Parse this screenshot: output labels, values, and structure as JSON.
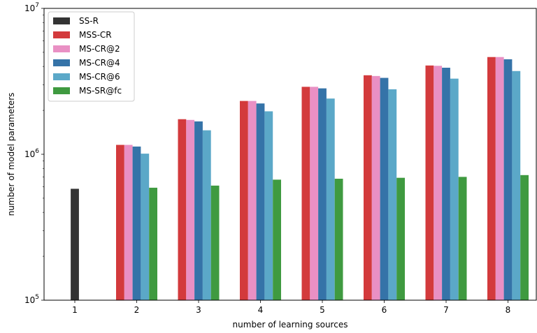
{
  "chart_data": {
    "type": "bar",
    "xlabel": "number of learning sources",
    "ylabel": "number of model parameters",
    "yscale": "log",
    "ylim": [
      100000,
      10000000
    ],
    "ytick_base": "10",
    "yticks": [
      {
        "value": 100000,
        "exp": "5"
      },
      {
        "value": 1000000,
        "exp": "6"
      },
      {
        "value": 10000000,
        "exp": "7"
      }
    ],
    "categories": [
      "1",
      "2",
      "3",
      "4",
      "5",
      "6",
      "7",
      "8"
    ],
    "legend_position": "top-left",
    "series": [
      {
        "name": "SS-R",
        "color": "#333333",
        "values": [
          580000,
          null,
          null,
          null,
          null,
          null,
          null,
          null
        ]
      },
      {
        "name": "MSS-CR",
        "color": "#d33a3c",
        "values": [
          null,
          1160000,
          1740000,
          2320000,
          2900000,
          3480000,
          4060000,
          4640000
        ]
      },
      {
        "name": "MS-CR@2",
        "color": "#e990c4",
        "values": [
          null,
          1160000,
          1720000,
          2320000,
          2900000,
          3440000,
          4040000,
          4640000
        ]
      },
      {
        "name": "MS-CR@4",
        "color": "#3573a8",
        "values": [
          null,
          1130000,
          1680000,
          2230000,
          2830000,
          3340000,
          3920000,
          4480000
        ]
      },
      {
        "name": "MS-CR@6",
        "color": "#5ba8c8",
        "values": [
          null,
          1010000,
          1460000,
          1970000,
          2410000,
          2790000,
          3300000,
          3720000
        ]
      },
      {
        "name": "MS-SR@fc",
        "color": "#3f9a40",
        "values": [
          null,
          590000,
          610000,
          670000,
          680000,
          690000,
          700000,
          720000
        ]
      }
    ]
  }
}
